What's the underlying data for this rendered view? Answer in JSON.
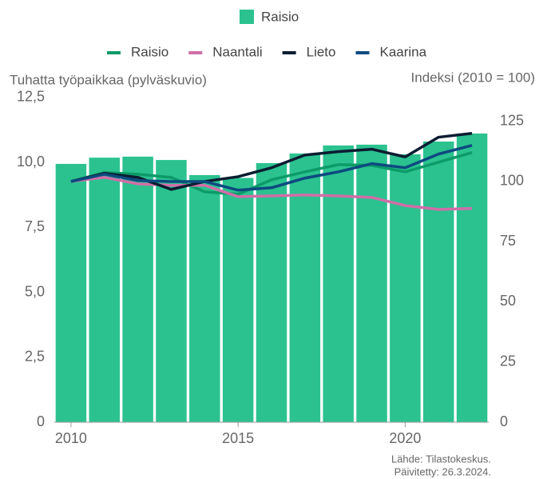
{
  "chart_data": {
    "type": "bar",
    "x": [
      2010,
      2011,
      2012,
      2013,
      2014,
      2015,
      2016,
      2017,
      2018,
      2019,
      2020,
      2021,
      2022
    ],
    "xlim": [
      2009.5,
      2022.5
    ],
    "xticks": [
      2010,
      2015,
      2020
    ],
    "ylim": [
      0,
      13.2
    ],
    "yticks": [
      0,
      {
        "value": 2.5,
        "label": "2,5"
      },
      {
        "value": 5,
        "label": "5,0"
      },
      {
        "value": 7.5,
        "label": "7,5"
      },
      {
        "value": 10,
        "label": "10,0"
      },
      {
        "value": 12.5,
        "label": "12,5"
      }
    ],
    "y2lim": [
      0,
      142.5
    ],
    "y2ticks": [
      0,
      25,
      50,
      75,
      100,
      125
    ],
    "ylabel": "Tuhatta työpaikkaa (pylväskuvio)",
    "y2label": "Indeksi (2010 = 100)",
    "series": [
      {
        "name": "Raisio",
        "type": "bar",
        "color": "#2bc290",
        "values": [
          9.94,
          10.18,
          10.22,
          10.09,
          9.51,
          9.4,
          9.97,
          10.34,
          10.65,
          10.68,
          10.31,
          10.8,
          11.11
        ]
      },
      {
        "name": "Raisio",
        "type": "line",
        "axis": "y2",
        "color": "#0c9b68",
        "values": [
          100,
          103.7,
          103,
          101.7,
          95.7,
          94.7,
          100.7,
          104,
          107,
          106.7,
          104,
          108,
          112
        ]
      },
      {
        "name": "Naantali",
        "type": "line",
        "axis": "y2",
        "color": "#d06ea8",
        "values": [
          100,
          101.7,
          99,
          98.4,
          98.4,
          93.7,
          94,
          94.4,
          94,
          93.4,
          90,
          88.4,
          88.8
        ]
      },
      {
        "name": "Lieto",
        "type": "line",
        "axis": "y2",
        "color": "#0b1d31",
        "values": [
          100,
          103.4,
          101.7,
          96.7,
          100,
          102,
          105.7,
          111,
          112.4,
          113.4,
          110.2,
          118.4,
          120
        ]
      },
      {
        "name": "Kaarina",
        "type": "line",
        "axis": "y2",
        "color": "#0d4a7f",
        "values": [
          100,
          103,
          100.4,
          100,
          100,
          96.4,
          97.4,
          101.4,
          104,
          107.4,
          105.7,
          111.4,
          115
        ]
      }
    ],
    "source": [
      "Lähde: Tilastokeskus.",
      "Päivitetty: 26.3.2024."
    ]
  }
}
